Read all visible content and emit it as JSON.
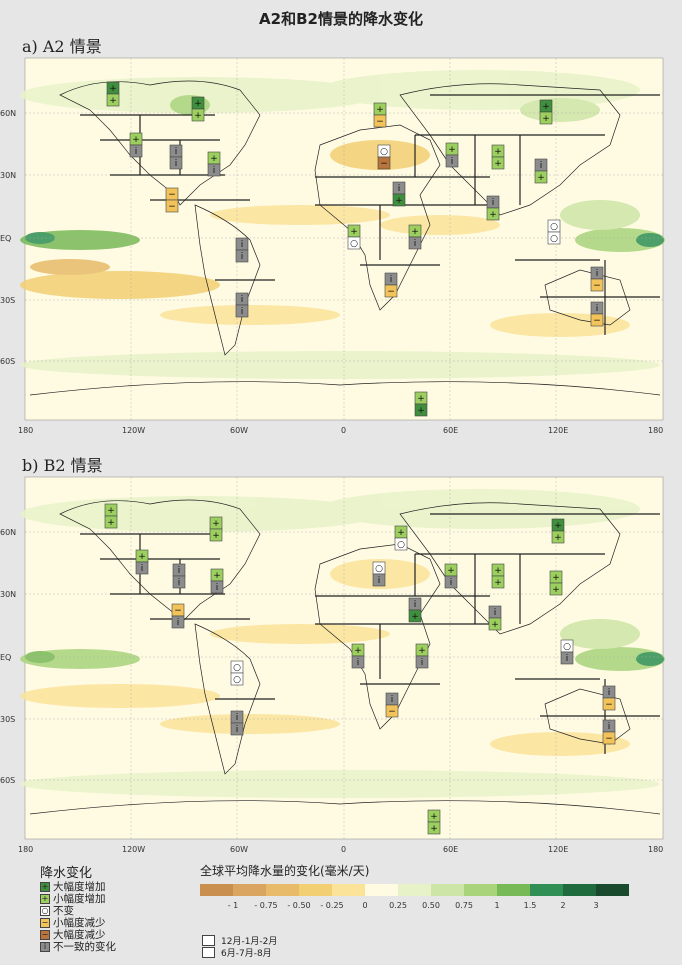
{
  "title": "A2和B2情景的降水变化",
  "panels": [
    {
      "label": "a) A2 情景"
    },
    {
      "label": "b) B2 情景"
    }
  ],
  "axes": {
    "lon_ticks": [
      "180",
      "120W",
      "60W",
      "0",
      "60E",
      "120E",
      "180"
    ],
    "lat_ticks": [
      "60N",
      "30N",
      "EQ",
      "30S",
      "60S"
    ]
  },
  "legend": {
    "title": "降水变化",
    "items": [
      {
        "label": "大幅度增加",
        "symbol": "+",
        "color": "#3f8f3f"
      },
      {
        "label": "小幅度增加",
        "symbol": "+",
        "color": "#9ccf5f"
      },
      {
        "label": "不变",
        "symbol": "○",
        "color": "#ffffff"
      },
      {
        "label": "小幅度减少",
        "symbol": "−",
        "color": "#f2c35a"
      },
      {
        "label": "大幅度减少",
        "symbol": "−",
        "color": "#b8743a"
      },
      {
        "label": "不一致的变化",
        "symbol": "i",
        "color": "#8c8c8c"
      }
    ]
  },
  "colorbar": {
    "title": "全球平均降水量的变化(毫米/天)",
    "labels": [
      "- 1",
      "- 0.75",
      "- 0.50",
      "- 0.25",
      "0",
      "0.25",
      "0.50",
      "0.75",
      "1",
      "1.5",
      "2",
      "3"
    ],
    "colors": [
      "#c98f4f",
      "#d9a560",
      "#e8bb6a",
      "#f3cf73",
      "#fbe39a",
      "#fffbe3",
      "#e7f2c9",
      "#cde5a6",
      "#a9d47b",
      "#78b957",
      "#2f8f55",
      "#1f6b3e",
      "#1a4a2d"
    ]
  },
  "seasons": [
    "12月-1月-2月",
    "6月-7月-8月"
  ]
}
